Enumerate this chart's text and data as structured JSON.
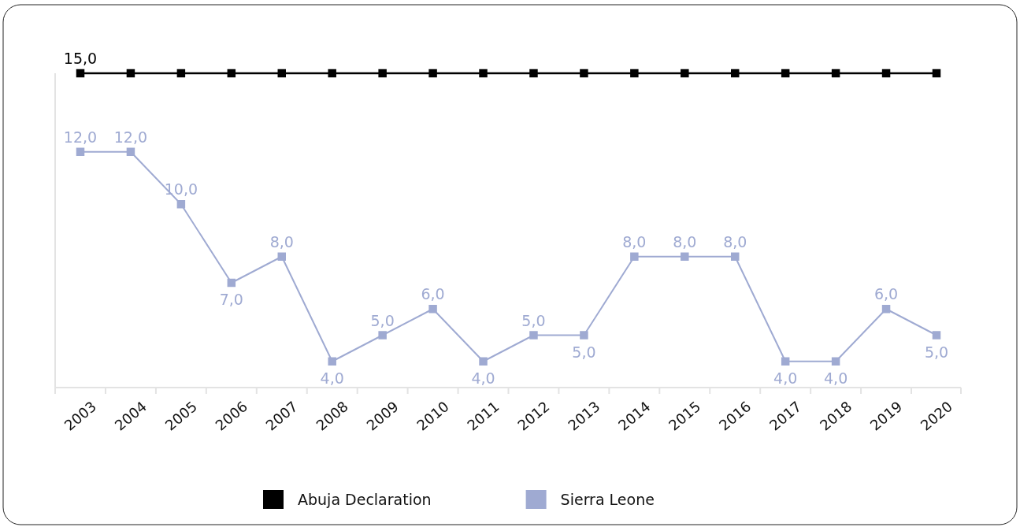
{
  "chart_data": {
    "type": "line",
    "categories": [
      "2003",
      "2004",
      "2005",
      "2006",
      "2007",
      "2008",
      "2009",
      "2010",
      "2011",
      "2012",
      "2013",
      "2014",
      "2015",
      "2016",
      "2017",
      "2018",
      "2019",
      "2020"
    ],
    "series": [
      {
        "name": "Abuja Declaration",
        "color": "#000000",
        "values": [
          15,
          15,
          15,
          15,
          15,
          15,
          15,
          15,
          15,
          15,
          15,
          15,
          15,
          15,
          15,
          15,
          15,
          15
        ],
        "value_labels": [
          "15,0",
          null,
          null,
          null,
          null,
          null,
          null,
          null,
          null,
          null,
          null,
          null,
          null,
          null,
          null,
          null,
          null,
          null
        ]
      },
      {
        "name": "Sierra Leone",
        "color": "#9faad2",
        "values": [
          12,
          12,
          10,
          7,
          8,
          4,
          5,
          6,
          4,
          5,
          5,
          8,
          8,
          8,
          4,
          4,
          6,
          5
        ],
        "value_labels": [
          "12,0",
          "12,0",
          "10,0",
          "7,0",
          "8,0",
          "4,0",
          "5,0",
          "6,0",
          "4,0",
          "5,0",
          "5,0",
          "8,0",
          "8,0",
          "8,0",
          "4,0",
          "4,0",
          "6,0",
          "5,0"
        ]
      }
    ],
    "ylim": [
      3,
      15
    ],
    "tick_labels": "x",
    "marker": "square",
    "line_style": "solid",
    "legend": "bottom"
  }
}
